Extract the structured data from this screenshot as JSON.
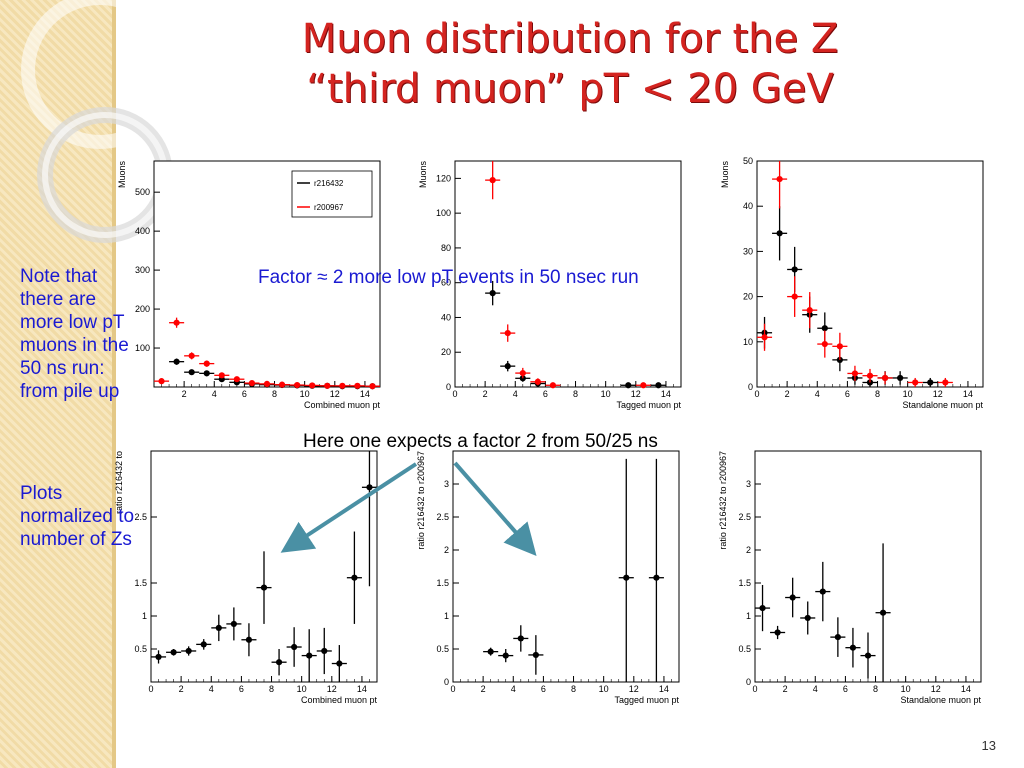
{
  "slide": {
    "title_line1": "Muon distribution for the Z",
    "title_line2": "“third muon” pT < 20 GeV",
    "note_lines": [
      "Note that",
      "there are",
      "more low pT",
      "muons in the",
      "50 ns run:",
      "from pile up"
    ],
    "plots_note_lines": [
      "Plots",
      "normalized to",
      "number of Zs"
    ],
    "factor_text": "Factor ≈ 2 more low pT events in 50 nsec run",
    "expect_text": "Here one expects a factor 2 from 50/25 ns",
    "page_number": "13",
    "colors": {
      "title": "#d42420",
      "note_text": "#1a1ad2",
      "series_a": "#000000",
      "series_b": "#ff0000",
      "arrow": "#4a90a4"
    }
  },
  "chart_data": [
    {
      "type": "scatter",
      "xlabel": "Combined muon pt",
      "ylabel": "Muons",
      "xlim": [
        0,
        15
      ],
      "ylim": [
        0,
        580
      ],
      "xticks": [
        2,
        4,
        6,
        8,
        10,
        12,
        14
      ],
      "yticks": [
        100,
        200,
        300,
        400,
        500
      ],
      "legend": [
        "r216432",
        "r200967"
      ],
      "series": [
        {
          "name": "r216432",
          "color": "#000000",
          "x": [
            1.5,
            2.5,
            3.5,
            4.5,
            5.5,
            6.5,
            7.5,
            8.5,
            9.5,
            10.5,
            11.5,
            12.5,
            13.5,
            14.5
          ],
          "y": [
            65,
            38,
            35,
            20,
            12,
            8,
            6,
            5,
            4,
            3,
            3,
            2,
            2,
            2
          ],
          "yerr": [
            8,
            6,
            6,
            4,
            3,
            3,
            2,
            2,
            2,
            2,
            2,
            1,
            1,
            1
          ]
        },
        {
          "name": "r200967",
          "color": "#ff0000",
          "x": [
            0.5,
            1.5,
            2.5,
            3.5,
            4.5,
            5.5,
            6.5,
            7.5,
            8.5,
            9.5,
            10.5,
            11.5,
            12.5,
            13.5,
            14.5
          ],
          "y": [
            15,
            165,
            80,
            60,
            30,
            20,
            10,
            8,
            6,
            5,
            4,
            3,
            3,
            3,
            2
          ],
          "yerr": [
            4,
            13,
            9,
            8,
            5,
            4,
            3,
            3,
            2,
            2,
            2,
            2,
            2,
            2,
            1
          ]
        }
      ]
    },
    {
      "type": "scatter",
      "xlabel": "Tagged muon pt",
      "ylabel": "Muons",
      "xlim": [
        0,
        15
      ],
      "ylim": [
        0,
        130
      ],
      "xticks": [
        0,
        2,
        4,
        6,
        8,
        10,
        12,
        14
      ],
      "yticks": [
        0,
        20,
        40,
        60,
        80,
        100,
        120
      ],
      "series": [
        {
          "name": "r216432",
          "color": "#000000",
          "x": [
            2.5,
            3.5,
            4.5,
            5.5,
            11.5,
            13.5
          ],
          "y": [
            54,
            12,
            5,
            2,
            1,
            1
          ],
          "yerr": [
            7,
            3,
            2,
            1,
            1,
            1
          ]
        },
        {
          "name": "r200967",
          "color": "#ff0000",
          "x": [
            2.5,
            3.5,
            4.5,
            5.5,
            6.5,
            12.5
          ],
          "y": [
            119,
            31,
            8,
            3,
            1,
            1
          ],
          "yerr": [
            11,
            5,
            3,
            2,
            1,
            1
          ]
        }
      ]
    },
    {
      "type": "scatter",
      "xlabel": "Standalone muon pt",
      "ylabel": "Muons",
      "xlim": [
        0,
        15
      ],
      "ylim": [
        0,
        50
      ],
      "xticks": [
        0,
        2,
        4,
        6,
        8,
        10,
        12,
        14
      ],
      "yticks": [
        0,
        10,
        20,
        30,
        40,
        50
      ],
      "series": [
        {
          "name": "r216432",
          "color": "#000000",
          "x": [
            0.5,
            1.5,
            2.5,
            3.5,
            4.5,
            5.5,
            6.5,
            7.5,
            8.5,
            9.5,
            11.5
          ],
          "y": [
            12,
            34,
            26,
            16,
            13,
            6,
            2,
            1,
            2,
            2,
            1
          ],
          "yerr": [
            3.5,
            6,
            5,
            4,
            3.5,
            2.5,
            1.5,
            1,
            1.5,
            1.5,
            1
          ]
        },
        {
          "name": "r200967",
          "color": "#ff0000",
          "x": [
            0.5,
            1.5,
            2.5,
            3.5,
            4.5,
            5.5,
            6.5,
            7.5,
            8.5,
            10.5,
            12.5
          ],
          "y": [
            11,
            46,
            20,
            17,
            9.5,
            9,
            3,
            2.5,
            2,
            1,
            1
          ],
          "yerr": [
            3,
            6.5,
            4.5,
            4,
            3,
            3,
            1.7,
            1.5,
            1.4,
            1,
            1
          ]
        }
      ]
    },
    {
      "type": "scatter",
      "xlabel": "Combined muon pt",
      "ylabel": "ratio r216432 to",
      "xlim": [
        0,
        15
      ],
      "ylim": [
        0,
        3.5
      ],
      "xticks": [
        0,
        2,
        4,
        6,
        8,
        10,
        12,
        14
      ],
      "yticks": [
        0.5,
        1,
        1.5,
        2.5
      ],
      "series": [
        {
          "name": "ratio",
          "color": "#000000",
          "x": [
            0.5,
            1.5,
            2.5,
            3.5,
            4.5,
            5.5,
            6.5,
            7.5,
            8.5,
            9.5,
            10.5,
            11.5,
            12.5,
            13.5,
            14.5
          ],
          "y": [
            0.38,
            0.45,
            0.47,
            0.57,
            0.82,
            0.88,
            0.64,
            1.43,
            0.3,
            0.53,
            0.4,
            0.47,
            0.28,
            1.58,
            2.95
          ],
          "yerr": [
            0.1,
            0.05,
            0.07,
            0.08,
            0.2,
            0.25,
            0.25,
            0.55,
            0.2,
            0.3,
            0.4,
            0.35,
            0.28,
            0.7,
            1.5
          ]
        }
      ]
    },
    {
      "type": "scatter",
      "xlabel": "Tagged muon pt",
      "ylabel": "ratio r216432 to r200967",
      "xlim": [
        0,
        15
      ],
      "ylim": [
        0,
        3.5
      ],
      "xticks": [
        0,
        2,
        4,
        6,
        8,
        10,
        12,
        14
      ],
      "yticks": [
        0,
        0.5,
        1,
        1.5,
        2,
        2.5,
        3
      ],
      "series": [
        {
          "name": "ratio",
          "color": "#000000",
          "x": [
            2.5,
            3.5,
            4.5,
            5.5,
            11.5,
            13.5
          ],
          "y": [
            0.46,
            0.4,
            0.66,
            0.41,
            1.58,
            1.58
          ],
          "yerr": [
            0.06,
            0.1,
            0.2,
            0.3,
            1.8,
            1.8
          ]
        }
      ]
    },
    {
      "type": "scatter",
      "xlabel": "Standalone muon pt",
      "ylabel": "ratio r216432 to r200967",
      "xlim": [
        0,
        15
      ],
      "ylim": [
        0,
        3.5
      ],
      "xticks": [
        0,
        2,
        4,
        6,
        8,
        10,
        12,
        14
      ],
      "yticks": [
        0,
        0.5,
        1,
        1.5,
        2,
        2.5,
        3
      ],
      "series": [
        {
          "name": "ratio",
          "color": "#000000",
          "x": [
            0.5,
            1.5,
            2.5,
            3.5,
            4.5,
            5.5,
            6.5,
            7.5,
            8.5
          ],
          "y": [
            1.12,
            0.75,
            1.28,
            0.97,
            1.37,
            0.68,
            0.52,
            0.4,
            1.05
          ],
          "yerr": [
            0.35,
            0.1,
            0.3,
            0.25,
            0.45,
            0.3,
            0.3,
            0.35,
            1.05
          ]
        }
      ]
    }
  ]
}
